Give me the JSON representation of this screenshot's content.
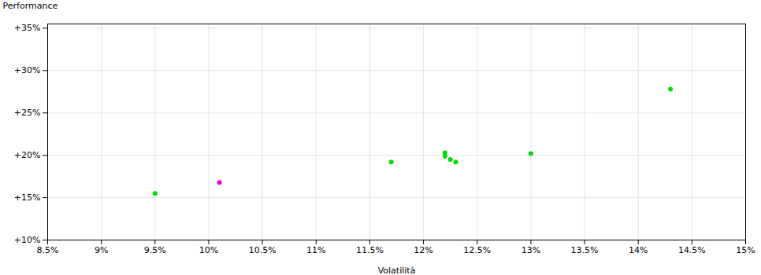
{
  "chart_data": {
    "type": "scatter",
    "xlabel": "Volatilità",
    "ylabel": "Performance",
    "x": [
      0.095,
      0.101,
      0.117,
      0.122,
      0.122,
      0.1225,
      0.123,
      0.13,
      0.143
    ],
    "values": [
      0.155,
      0.168,
      0.192,
      0.203,
      0.199,
      0.195,
      0.192,
      0.202,
      0.278
    ],
    "colors": [
      "#00dd00",
      "#dd00dd",
      "#00dd00",
      "#00dd00",
      "#00dd00",
      "#00dd00",
      "#00dd00",
      "#00dd00",
      "#00dd00"
    ],
    "xlim": [
      0.085,
      0.15
    ],
    "ylim": [
      0.1,
      0.355
    ],
    "xticks": [
      {
        "value": 0.085,
        "label": "8.5%"
      },
      {
        "value": 0.09,
        "label": "9%"
      },
      {
        "value": 0.095,
        "label": "9.5%"
      },
      {
        "value": 0.1,
        "label": "10%"
      },
      {
        "value": 0.105,
        "label": "10.5%"
      },
      {
        "value": 0.11,
        "label": "11%"
      },
      {
        "value": 0.115,
        "label": "11.5%"
      },
      {
        "value": 0.12,
        "label": "12%"
      },
      {
        "value": 0.125,
        "label": "12.5%"
      },
      {
        "value": 0.13,
        "label": "13%"
      },
      {
        "value": 0.135,
        "label": "13.5%"
      },
      {
        "value": 0.14,
        "label": "14%"
      },
      {
        "value": 0.145,
        "label": "14.5%"
      },
      {
        "value": 0.15,
        "label": "15%"
      }
    ],
    "yticks": [
      {
        "value": 0.1,
        "label": "+10%"
      },
      {
        "value": 0.15,
        "label": "+15%"
      },
      {
        "value": 0.2,
        "label": "+20%"
      },
      {
        "value": 0.25,
        "label": "+25%"
      },
      {
        "value": 0.3,
        "label": "+30%"
      },
      {
        "value": 0.35,
        "label": "+35%"
      }
    ],
    "grid": true
  }
}
